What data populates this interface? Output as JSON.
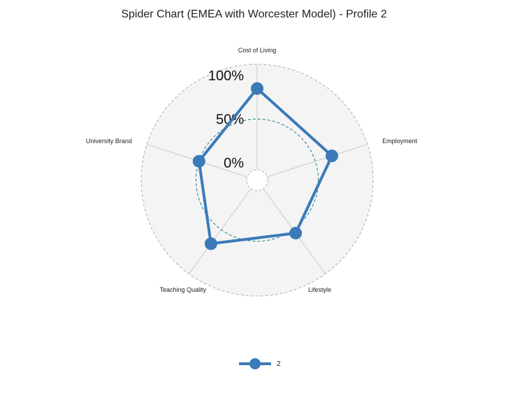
{
  "chart_data": {
    "type": "radar",
    "title": "Spider Chart (EMEA with Worcester Model) - Profile 2",
    "axes": [
      "Cost of Living",
      "Employment",
      "Lifestyle",
      "Teaching Quality",
      "University Brand"
    ],
    "tick_labels": [
      "100%",
      "50%",
      "0%"
    ],
    "rlim": [
      -20,
      100
    ],
    "reference_level": 50,
    "series": [
      {
        "name": "2",
        "values": [
          85,
          70,
          55,
          70,
          50
        ],
        "color": "#3a7ab8"
      }
    ],
    "legend_position": "bottom",
    "colors": {
      "panel": "#f4f4f4",
      "grid": "#c8c8c8",
      "reference_circle": "#1a7a8a"
    }
  }
}
